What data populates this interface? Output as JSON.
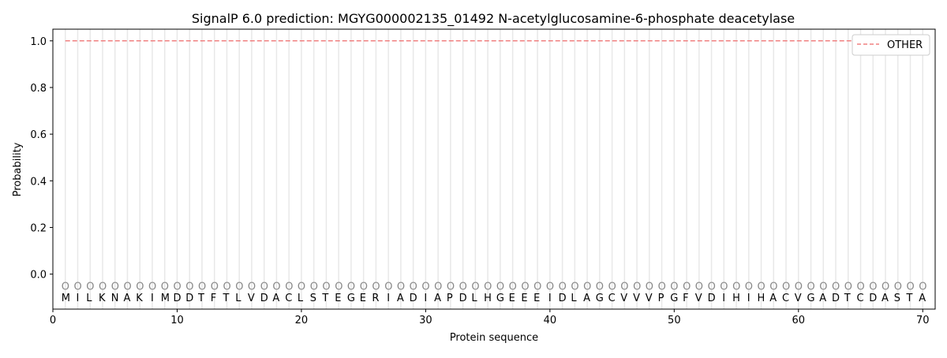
{
  "chart_data": {
    "type": "line",
    "title": "SignalP 6.0 prediction: MGYG000002135_01492 N-acetylglucosamine-6-phosphate deacetylase",
    "xlabel": "Protein sequence",
    "ylabel": "Probability",
    "xlim": [
      0,
      71
    ],
    "ylim": [
      -0.15,
      1.05
    ],
    "xticks": [
      0,
      10,
      20,
      30,
      40,
      50,
      60,
      70
    ],
    "yticks": [
      0.0,
      0.2,
      0.4,
      0.6,
      0.8,
      1.0
    ],
    "ytick_labels": [
      "0.0",
      "0.2",
      "0.4",
      "0.6",
      "0.8",
      "1.0"
    ],
    "sequence": "MILKNAKIMDDTFTLVDACLSTEGERIADIAPDLHGEEEIDLAGCVVVPGFVDIHIHACVGADTCDASTA",
    "predicted_labels": "OOOOOOOOOOOOOOOOOOOOOOOOOOOOOOOOOOOOOOOOOOOOOOOOOOOOOOOOOOOOOOOOOOOOOO",
    "series": [
      {
        "name": "OTHER",
        "color": "#f08080",
        "style": "dashed",
        "x_start": 1,
        "x_end": 70,
        "value": 1.0
      }
    ],
    "legend": "top-right",
    "grid": false
  }
}
